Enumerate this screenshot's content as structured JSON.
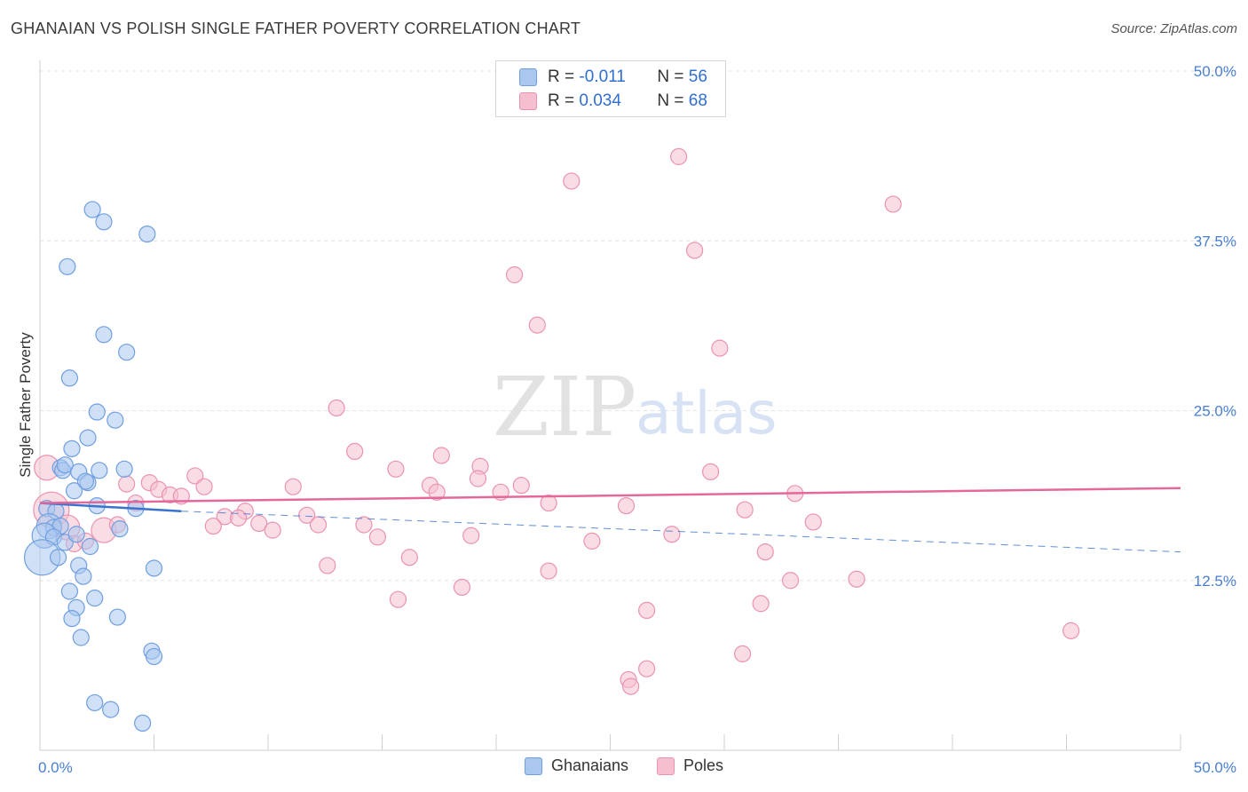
{
  "title": "GHANAIAN VS POLISH SINGLE FATHER POVERTY CORRELATION CHART",
  "source": "Source: ZipAtlas.com",
  "watermark": {
    "zip": "ZIP",
    "atlas": "atlas"
  },
  "legend_top": {
    "r_label": "R =",
    "n_label": "N =",
    "rows": [
      {
        "series": "Ghanaians",
        "r": "-0.011",
        "n": "56"
      },
      {
        "series": "Poles",
        "r": "0.034",
        "n": "68"
      }
    ]
  },
  "colors": {
    "ghanaians_fill": "#a9c7ef",
    "ghanaians_stroke": "#6f9fe0",
    "ghanaians_line": "#3a72cf",
    "poles_fill": "#f6bfd0",
    "poles_stroke": "#ea93b1",
    "poles_line": "#e4699a",
    "tick_text": "#4a7fd0"
  },
  "chart_data": {
    "type": "scatter",
    "title": "GHANAIAN VS POLISH SINGLE FATHER POVERTY CORRELATION CHART",
    "xlabel": "",
    "ylabel": "Single Father Poverty",
    "xlim": [
      0,
      50
    ],
    "ylim": [
      0,
      50
    ],
    "x_tick_labels": [
      "0.0%",
      "50.0%"
    ],
    "y_ticks": [
      12.5,
      25.0,
      37.5,
      50.0
    ],
    "y_tick_labels": [
      "12.5%",
      "25.0%",
      "37.5%",
      "50.0%"
    ],
    "grid": true,
    "legend": [
      "Ghanaians",
      "Poles"
    ],
    "series": [
      {
        "name": "Ghanaians",
        "r": -0.011,
        "n": 56,
        "trend": {
          "x": [
            0,
            6.2
          ],
          "y": [
            18.2,
            17.6
          ],
          "dashed_to": [
            50,
            14.6
          ]
        },
        "points": [
          [
            2.3,
            39.8,
            1
          ],
          [
            2.8,
            38.9,
            1
          ],
          [
            4.7,
            38.0,
            1
          ],
          [
            1.2,
            35.6,
            1
          ],
          [
            2.8,
            30.6,
            1
          ],
          [
            3.8,
            29.3,
            1
          ],
          [
            1.3,
            27.4,
            1
          ],
          [
            2.5,
            24.9,
            1
          ],
          [
            3.3,
            24.3,
            1
          ],
          [
            2.1,
            23.0,
            1
          ],
          [
            1.4,
            22.2,
            1
          ],
          [
            0.9,
            20.8,
            1
          ],
          [
            1.0,
            20.6,
            1
          ],
          [
            1.1,
            21.0,
            1
          ],
          [
            1.7,
            20.5,
            1
          ],
          [
            2.6,
            20.6,
            1
          ],
          [
            3.7,
            20.7,
            1
          ],
          [
            2.1,
            19.7,
            1
          ],
          [
            2.0,
            19.8,
            1
          ],
          [
            1.5,
            19.1,
            1
          ],
          [
            0.3,
            17.8,
            1
          ],
          [
            0.7,
            17.6,
            1
          ],
          [
            2.5,
            18.0,
            1
          ],
          [
            4.2,
            17.8,
            1
          ],
          [
            0.4,
            16.5,
            2
          ],
          [
            0.6,
            16.4,
            1
          ],
          [
            0.9,
            16.5,
            1
          ],
          [
            0.2,
            15.8,
            2
          ],
          [
            0.6,
            15.7,
            1
          ],
          [
            1.1,
            15.3,
            1
          ],
          [
            1.6,
            15.9,
            1
          ],
          [
            2.2,
            15.0,
            1
          ],
          [
            3.5,
            16.3,
            1
          ],
          [
            0.1,
            14.2,
            3
          ],
          [
            0.8,
            14.2,
            1
          ],
          [
            1.7,
            13.6,
            1
          ],
          [
            1.9,
            12.8,
            1
          ],
          [
            5.0,
            13.4,
            1
          ],
          [
            1.3,
            11.7,
            1
          ],
          [
            2.4,
            11.2,
            1
          ],
          [
            1.6,
            10.5,
            1
          ],
          [
            1.4,
            9.7,
            1
          ],
          [
            3.4,
            9.8,
            1
          ],
          [
            1.8,
            8.3,
            1
          ],
          [
            4.9,
            7.3,
            1
          ],
          [
            5.0,
            6.9,
            1
          ],
          [
            2.4,
            3.5,
            1
          ],
          [
            3.1,
            3.0,
            1
          ],
          [
            4.5,
            2.0,
            1
          ]
        ]
      },
      {
        "name": "Poles",
        "r": 0.034,
        "n": 68,
        "trend": {
          "x": [
            0,
            50
          ],
          "y": [
            18.2,
            19.3
          ]
        },
        "points": [
          [
            28.0,
            43.7,
            1
          ],
          [
            23.3,
            41.9,
            1
          ],
          [
            37.4,
            40.2,
            1
          ],
          [
            28.7,
            36.8,
            1
          ],
          [
            20.8,
            35.0,
            1
          ],
          [
            21.8,
            31.3,
            1
          ],
          [
            29.8,
            29.6,
            1
          ],
          [
            13.0,
            25.2,
            1
          ],
          [
            13.8,
            22.0,
            1
          ],
          [
            17.6,
            21.7,
            1
          ],
          [
            15.6,
            20.7,
            1
          ],
          [
            19.3,
            20.9,
            1
          ],
          [
            19.2,
            20.0,
            1
          ],
          [
            29.4,
            20.5,
            1
          ],
          [
            6.8,
            20.2,
            1
          ],
          [
            7.2,
            19.4,
            1
          ],
          [
            17.1,
            19.5,
            1
          ],
          [
            21.1,
            19.5,
            1
          ],
          [
            11.1,
            19.4,
            1
          ],
          [
            4.8,
            19.7,
            1
          ],
          [
            3.8,
            19.6,
            1
          ],
          [
            5.2,
            19.2,
            1
          ],
          [
            5.7,
            18.8,
            1
          ],
          [
            6.2,
            18.7,
            1
          ],
          [
            17.4,
            19.0,
            1
          ],
          [
            20.2,
            19.0,
            1
          ],
          [
            33.1,
            18.9,
            1
          ],
          [
            4.2,
            18.2,
            1
          ],
          [
            22.3,
            18.2,
            1
          ],
          [
            25.7,
            18.0,
            1
          ],
          [
            30.9,
            17.7,
            1
          ],
          [
            9.0,
            17.6,
            1
          ],
          [
            11.7,
            17.3,
            1
          ],
          [
            8.1,
            17.2,
            1
          ],
          [
            8.7,
            17.1,
            1
          ],
          [
            7.6,
            16.5,
            1
          ],
          [
            9.6,
            16.7,
            1
          ],
          [
            10.2,
            16.2,
            1
          ],
          [
            12.2,
            16.6,
            1
          ],
          [
            14.2,
            16.6,
            1
          ],
          [
            14.8,
            15.7,
            1
          ],
          [
            18.9,
            15.8,
            1
          ],
          [
            24.2,
            15.4,
            1
          ],
          [
            27.7,
            15.9,
            1
          ],
          [
            33.9,
            16.8,
            1
          ],
          [
            0.5,
            17.7,
            3
          ],
          [
            1.2,
            16.4,
            2
          ],
          [
            2.8,
            16.2,
            2
          ],
          [
            3.4,
            16.6,
            1
          ],
          [
            0.3,
            20.8,
            2
          ],
          [
            1.5,
            15.2,
            1
          ],
          [
            2.0,
            15.4,
            1
          ],
          [
            16.2,
            14.2,
            1
          ],
          [
            31.8,
            14.6,
            1
          ],
          [
            12.6,
            13.6,
            1
          ],
          [
            22.3,
            13.2,
            1
          ],
          [
            32.9,
            12.5,
            1
          ],
          [
            35.8,
            12.6,
            1
          ],
          [
            18.5,
            12.0,
            1
          ],
          [
            15.7,
            11.1,
            1
          ],
          [
            26.6,
            10.3,
            1
          ],
          [
            31.6,
            10.8,
            1
          ],
          [
            45.2,
            8.8,
            1
          ],
          [
            30.8,
            7.1,
            1
          ],
          [
            26.6,
            6.0,
            1
          ],
          [
            25.8,
            5.2,
            1
          ],
          [
            25.9,
            4.7,
            1
          ]
        ]
      }
    ]
  }
}
